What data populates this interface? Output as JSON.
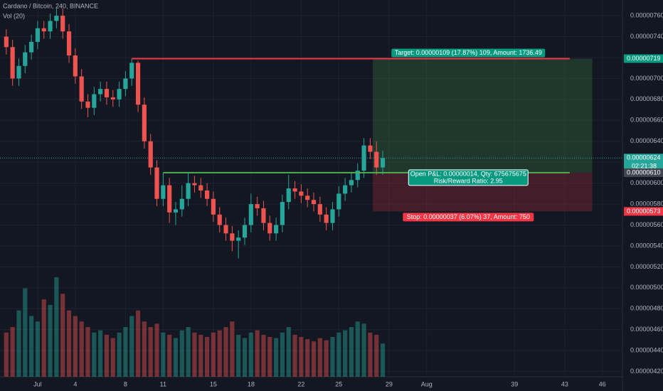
{
  "header": {
    "symbol": "Cardano / Bitcoin, 240, BINANCE",
    "indicator": "Vol (20)"
  },
  "chart_data": {
    "type": "candlestick",
    "x": [
      -1.5,
      -1,
      -0.5,
      0,
      0.5,
      1,
      1.5,
      2,
      2.5,
      3,
      3.5,
      4,
      4.5,
      5,
      5.5,
      6,
      6.5,
      7,
      7.5,
      8,
      8.5,
      9,
      9.5,
      10,
      10.5,
      11,
      11.5,
      12,
      12.5,
      13,
      13.5,
      14,
      14.5,
      15,
      15.5,
      16,
      16.5,
      17,
      17.5,
      18,
      18.5,
      19,
      19.5,
      20,
      20.5,
      21,
      21.5,
      22,
      22.5,
      23,
      23.5,
      24,
      24.5,
      25,
      25.5,
      26,
      26.5,
      27,
      27.5,
      28,
      28.5
    ],
    "open": [
      7.4e-06,
      7.3e-06,
      7e-06,
      7.12e-06,
      7.25e-06,
      7.35e-06,
      7.48e-06,
      7.45e-06,
      7.55e-06,
      7.6e-06,
      7.45e-06,
      7.22e-06,
      7.02e-06,
      6.78e-06,
      6.72e-06,
      6.85e-06,
      6.9e-06,
      6.82e-06,
      6.8e-06,
      6.9e-06,
      7e-06,
      7.15e-06,
      6.75e-06,
      6.4e-06,
      6.15e-06,
      5.85e-06,
      5.98e-06,
      5.72e-06,
      5.75e-06,
      5.85e-06,
      6e-06,
      5.98e-06,
      5.93e-06,
      5.85e-06,
      5.7e-06,
      5.6e-06,
      5.52e-06,
      5.45e-06,
      5.48e-06,
      5.6e-06,
      5.8e-06,
      5.76e-06,
      5.62e-06,
      5.52e-06,
      5.6e-06,
      5.82e-06,
      5.95e-06,
      5.92e-06,
      5.88e-06,
      5.84e-06,
      5.8e-06,
      5.7e-06,
      5.62e-06,
      5.75e-06,
      5.9e-06,
      5.98e-06,
      6.03e-06,
      6.12e-06,
      6.36e-06,
      6.3e-06,
      6.15e-06
    ],
    "high": [
      7.47e-06,
      7.37e-06,
      7.19e-06,
      7.32e-06,
      7.42e-06,
      7.55e-06,
      7.55e-06,
      7.62e-06,
      7.67e-06,
      7.67e-06,
      7.52e-06,
      7.29e-06,
      7.09e-06,
      6.85e-06,
      6.92e-06,
      6.97e-06,
      6.97e-06,
      6.89e-06,
      6.97e-06,
      7.07e-06,
      7.19e-06,
      7.17e-06,
      6.82e-06,
      6.47e-06,
      6.22e-06,
      6.1e-06,
      6.05e-06,
      5.82e-06,
      5.98e-06,
      6.1e-06,
      6.07e-06,
      6.05e-06,
      6e-06,
      5.92e-06,
      5.77e-06,
      5.67e-06,
      5.59e-06,
      5.55e-06,
      5.67e-06,
      5.9e-06,
      5.87e-06,
      5.83e-06,
      5.69e-06,
      5.67e-06,
      5.89e-06,
      6.08e-06,
      6.02e-06,
      5.99e-06,
      5.95e-06,
      5.91e-06,
      5.87e-06,
      5.77e-06,
      5.82e-06,
      5.97e-06,
      6.05e-06,
      6.1e-06,
      6.19e-06,
      6.43e-06,
      6.43e-06,
      6.4e-06,
      6.31e-06
    ],
    "low": [
      7.23e-06,
      6.93e-06,
      6.93e-06,
      7.05e-06,
      7.18e-06,
      7.28e-06,
      7.38e-06,
      7.38e-06,
      7.48e-06,
      7.38e-06,
      7.15e-06,
      6.95e-06,
      6.71e-06,
      6.63e-06,
      6.65e-06,
      6.78e-06,
      6.75e-06,
      6.73e-06,
      6.73e-06,
      6.83e-06,
      6.93e-06,
      6.68e-06,
      6.33e-06,
      6.08e-06,
      5.78e-06,
      5.78e-06,
      5.62e-06,
      5.6e-06,
      5.68e-06,
      5.78e-06,
      5.91e-06,
      5.86e-06,
      5.78e-06,
      5.63e-06,
      5.53e-06,
      5.45e-06,
      5.35e-06,
      5.28e-06,
      5.41e-06,
      5.53e-06,
      5.69e-06,
      5.55e-06,
      5.45e-06,
      5.45e-06,
      5.53e-06,
      5.75e-06,
      5.85e-06,
      5.81e-06,
      5.77e-06,
      5.73e-06,
      5.63e-06,
      5.55e-06,
      5.55e-06,
      5.68e-06,
      5.83e-06,
      5.91e-06,
      5.96e-06,
      6.05e-06,
      6.23e-06,
      6.08e-06,
      6.08e-06
    ],
    "close": [
      7.3e-06,
      7e-06,
      7.12e-06,
      7.25e-06,
      7.35e-06,
      7.48e-06,
      7.45e-06,
      7.55e-06,
      7.6e-06,
      7.45e-06,
      7.22e-06,
      7.02e-06,
      6.78e-06,
      6.72e-06,
      6.85e-06,
      6.9e-06,
      6.82e-06,
      6.8e-06,
      6.9e-06,
      7e-06,
      7.15e-06,
      6.75e-06,
      6.4e-06,
      6.15e-06,
      5.85e-06,
      5.98e-06,
      5.72e-06,
      5.75e-06,
      5.85e-06,
      6e-06,
      5.98e-06,
      5.93e-06,
      5.85e-06,
      5.7e-06,
      5.6e-06,
      5.52e-06,
      5.45e-06,
      5.48e-06,
      5.6e-06,
      5.8e-06,
      5.76e-06,
      5.62e-06,
      5.52e-06,
      5.6e-06,
      5.82e-06,
      5.95e-06,
      5.92e-06,
      5.88e-06,
      5.84e-06,
      5.8e-06,
      5.7e-06,
      5.62e-06,
      5.75e-06,
      5.9e-06,
      5.98e-06,
      6.03e-06,
      6.12e-06,
      6.36e-06,
      6.3e-06,
      6.15e-06,
      6.24e-06
    ],
    "volume": [
      40,
      45,
      60,
      80,
      55,
      50,
      70,
      65,
      90,
      75,
      60,
      55,
      50,
      45,
      40,
      42,
      38,
      35,
      40,
      45,
      55,
      60,
      50,
      45,
      48,
      40,
      38,
      35,
      42,
      45,
      40,
      38,
      36,
      40,
      42,
      45,
      50,
      38,
      35,
      40,
      42,
      38,
      36,
      35,
      40,
      45,
      38,
      36,
      34,
      32,
      35,
      33,
      36,
      40,
      42,
      45,
      50,
      48,
      40,
      38,
      30
    ],
    "up_color": "#26a69a",
    "down_color": "#ef5350",
    "xlim": [
      -2,
      47.6
    ],
    "ylim": [
      4.15e-06,
      7.75e-06
    ],
    "xticks": [
      {
        "value": 1,
        "label": "Jul"
      },
      4,
      8,
      11,
      15,
      18,
      22,
      25,
      29,
      {
        "value": 32,
        "label": "Aug"
      },
      39,
      43,
      46
    ],
    "yticks": [
      {
        "value": 7.6e-06,
        "label": "0.00000760"
      },
      {
        "value": 7.4e-06,
        "label": "0.00000740"
      },
      {
        "value": 7.2e-06,
        "label": "0.00000720"
      },
      {
        "value": 7e-06,
        "label": "0.00000700"
      },
      {
        "value": 6.8e-06,
        "label": "0.00000680"
      },
      {
        "value": 6.6e-06,
        "label": "0.00000660"
      },
      {
        "value": 6.4e-06,
        "label": "0.00000640"
      },
      {
        "value": 6.2e-06,
        "label": "0.00000620"
      },
      {
        "value": 6e-06,
        "label": "0.00000600"
      },
      {
        "value": 5.8e-06,
        "label": "0.00000580"
      },
      {
        "value": 5.6e-06,
        "label": "0.00000560"
      },
      {
        "value": 5.4e-06,
        "label": "0.00000540"
      },
      {
        "value": 5.2e-06,
        "label": "0.00000520"
      },
      {
        "value": 5e-06,
        "label": "0.00000500"
      },
      {
        "value": 4.8e-06,
        "label": "0.00000480"
      },
      {
        "value": 4.6e-06,
        "label": "0.00000460"
      },
      {
        "value": 4.4e-06,
        "label": "0.00000440"
      },
      {
        "value": 4.2e-06,
        "label": "0.00000420"
      }
    ],
    "grid": true,
    "lines": [
      {
        "price": 7.19e-06,
        "from": 8.5,
        "to": 43.4,
        "color": "#f23645"
      },
      {
        "price": 6.1e-06,
        "from": 11,
        "to": 43.4,
        "color": "#4caf50"
      }
    ],
    "position": {
      "start": 27.7,
      "end": 45.2,
      "target": 7.19e-06,
      "entry": 6.1e-06,
      "stop": 5.73e-06,
      "target_label": "Target: 0.00000109 (17.87%) 109, Amount: 1736.49",
      "stop_label": "Stop: 0.00000037 (6.07%) 37, Amount: 750",
      "pnl_label": "Open P&L: 0.00000014, Qty: 675675675",
      "ratio_label": "Risk/Reward Ratio: 2.95"
    },
    "last_price": 6.24e-06,
    "countdown": "02:21:38",
    "price_tags": [
      {
        "value": 7.19e-06,
        "label": "0.00000719",
        "color": "#089981"
      },
      {
        "value": 6.24e-06,
        "label": "0.00000624",
        "color": "#26a69a"
      },
      {
        "value": 6.1e-06,
        "label": "0.00000610",
        "color": "#434651"
      },
      {
        "value": 5.73e-06,
        "label": "0.00000573",
        "color": "#f23645"
      }
    ]
  }
}
